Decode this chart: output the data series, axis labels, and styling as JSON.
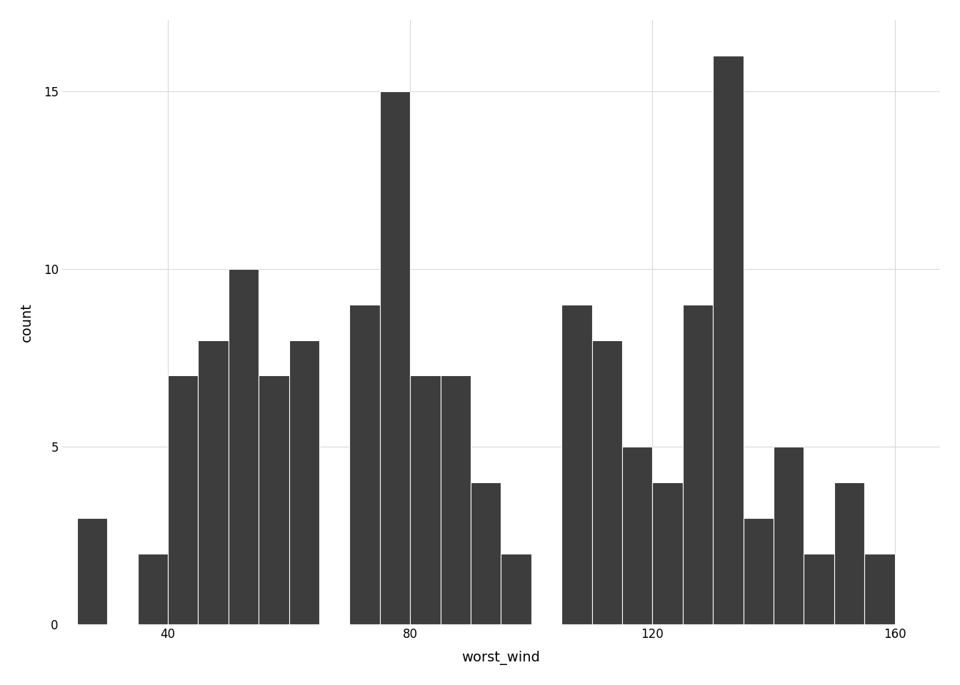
{
  "title": "",
  "xlabel": "worst_wind",
  "ylabel": "count",
  "bar_color": "#3d3d3d",
  "background_color": "#ffffff",
  "grid_color": "#d9d9d9",
  "xlim": [
    22.5,
    167.5
  ],
  "ylim": [
    0,
    17
  ],
  "xticks": [
    40,
    80,
    120,
    160
  ],
  "yticks": [
    0,
    5,
    10,
    15
  ],
  "bin_edges": [
    25,
    30,
    35,
    40,
    45,
    50,
    55,
    60,
    65,
    70,
    75,
    80,
    85,
    90,
    95,
    100,
    105,
    110,
    115,
    120,
    125,
    130,
    135,
    140,
    145,
    150,
    155,
    160,
    165
  ],
  "counts": [
    3,
    0,
    2,
    7,
    8,
    10,
    7,
    8,
    0,
    9,
    15,
    7,
    7,
    4,
    2,
    0,
    9,
    8,
    5,
    4,
    9,
    16,
    3,
    5,
    2,
    4,
    2,
    0
  ]
}
